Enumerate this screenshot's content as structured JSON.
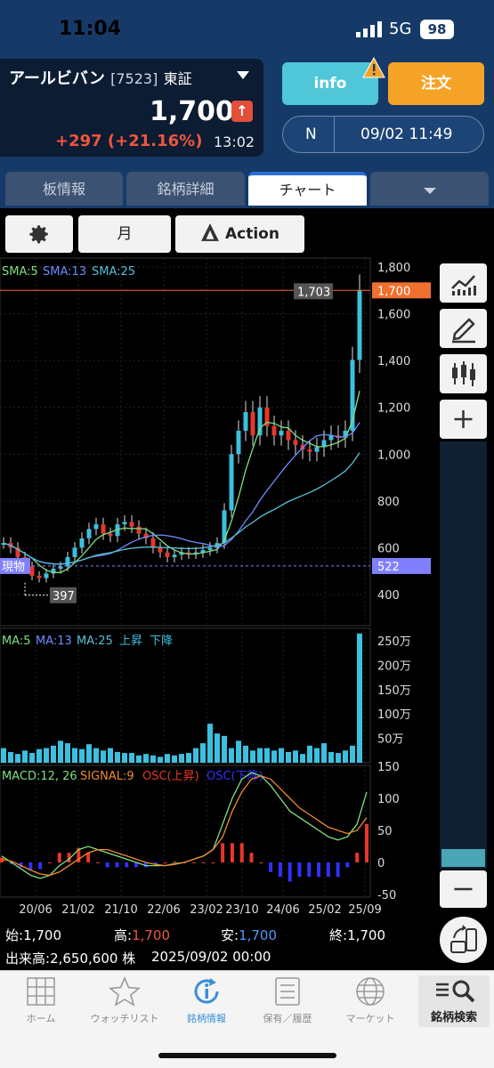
{
  "status": {
    "time": "11:04",
    "network": "5G",
    "battery": "98"
  },
  "stock": {
    "name": "アールビバン",
    "code": "[7523]",
    "exchange": "東証",
    "price": "1,700",
    "change": "+297 (+21.16%)",
    "change_time": "13:02"
  },
  "actions": {
    "info_label": "info",
    "order_label": "注文",
    "session_label": "N",
    "session_time": "09/02 11:49"
  },
  "tabs": [
    {
      "label": "板情報",
      "selected": false
    },
    {
      "label": "銘柄詳細",
      "selected": false
    },
    {
      "label": "チャート",
      "selected": true
    },
    {
      "label": "",
      "selected": false
    }
  ],
  "toolbar": {
    "period_label": "月",
    "action_label": "Action"
  },
  "chart_data": {
    "type": "candlestick",
    "period": "monthly",
    "price_axis": {
      "ticks": [
        "1,800",
        "1,600",
        "1,400",
        "1,200",
        "1,000",
        "800",
        "600",
        "400"
      ],
      "range": [
        400,
        1800
      ]
    },
    "x_ticks": [
      "20/06",
      "21/02",
      "21/10",
      "22/06",
      "23/02",
      "23/10",
      "24/06",
      "25/02",
      "25/09"
    ],
    "legend_price": [
      "SMA:5",
      "SMA:13",
      "SMA:25"
    ],
    "high_marker": {
      "label": "1,703",
      "value": 1703
    },
    "low_marker": {
      "label": "397",
      "value": 397
    },
    "current_price": {
      "label": "1,700",
      "value": 1700
    },
    "holding_line": {
      "name": "現物",
      "label": "522",
      "value": 522
    },
    "candles_close": [
      620,
      600,
      560,
      520,
      480,
      470,
      490,
      510,
      520,
      560,
      600,
      640,
      680,
      700,
      660,
      650,
      700,
      710,
      690,
      660,
      640,
      600,
      580,
      560,
      570,
      580,
      575,
      580,
      590,
      600,
      620,
      760,
      1000,
      1100,
      1180,
      1080,
      1200,
      1120,
      1080,
      1100,
      1060,
      1040,
      1020,
      1010,
      1030,
      1060,
      1080,
      1070,
      1100,
      1403,
      1700
    ],
    "volume_legend": [
      "MA:5",
      "MA:13",
      "MA:25",
      "上昇",
      "下降"
    ],
    "volume_axis": [
      "250万",
      "200万",
      "150万",
      "100万",
      "50万"
    ],
    "macd_legend": [
      "MACD:12, 26",
      "SIGNAL:9",
      "OSC(上昇)",
      "OSC(下降)"
    ],
    "macd_axis": [
      "150",
      "100",
      "50",
      "0",
      "-50"
    ],
    "colors": {
      "up": "#3bc0e0",
      "down": "#e8362a",
      "sma5": "#7fe07f",
      "sma13": "#6f8cff",
      "sma25": "#58c0d8",
      "signal": "#f08a30",
      "current": "#f07030",
      "holding": "#8080ff"
    }
  },
  "ohlc": {
    "open_label": "始:",
    "open": "1,700",
    "high_label": "高:",
    "high": "1,700",
    "low_label": "安:",
    "low": "1,700",
    "close_label": "終:",
    "close": "1,700",
    "volume_label": "出来高:",
    "volume": "2,650,600 株",
    "datetime": "2025/09/02 00:00"
  },
  "nav": [
    {
      "label": "ホーム",
      "icon": "grid-icon"
    },
    {
      "label": "ウォッチリスト",
      "icon": "star-icon"
    },
    {
      "label": "銘柄情報",
      "icon": "info-icon"
    },
    {
      "label": "保有／履歴",
      "icon": "list-icon"
    },
    {
      "label": "マーケット",
      "icon": "globe-icon"
    },
    {
      "label": "銘柄検索",
      "icon": "search-icon"
    }
  ]
}
